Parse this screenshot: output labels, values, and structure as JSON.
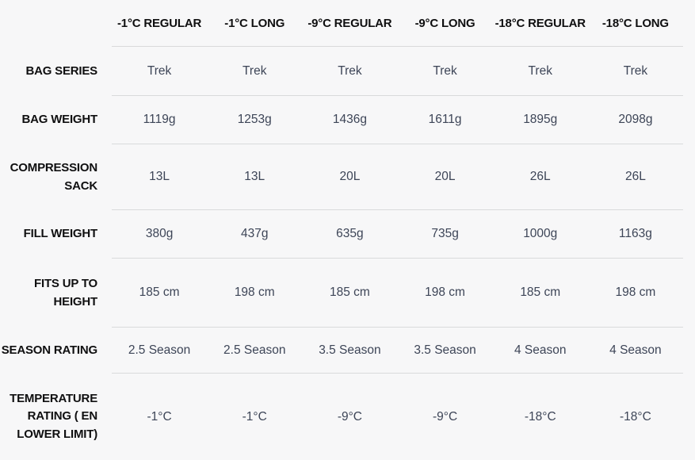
{
  "colors": {
    "background": "#f7f7f8",
    "label_text": "#0f0f10",
    "value_text": "#3d4557",
    "divider": "#d9dadb"
  },
  "table": {
    "columns": [
      "-1°C REGULAR",
      "-1°C LONG",
      "-9°C REGULAR",
      "-9°C LONG",
      "-18°C REGULAR",
      "-18°C LONG"
    ],
    "rows": [
      {
        "label": "BAG SERIES",
        "values": [
          "Trek",
          "Trek",
          "Trek",
          "Trek",
          "Trek",
          "Trek"
        ]
      },
      {
        "label": "BAG WEIGHT",
        "values": [
          "1119g",
          "1253g",
          "1436g",
          "1611g",
          "1895g",
          "2098g"
        ]
      },
      {
        "label": "COMPRESSION\nSACK",
        "values": [
          "13L",
          "13L",
          "20L",
          "20L",
          "26L",
          "26L"
        ]
      },
      {
        "label": "FILL WEIGHT",
        "values": [
          "380g",
          "437g",
          "635g",
          "735g",
          "1000g",
          "1163g"
        ]
      },
      {
        "label": "FITS UP TO\nHEIGHT",
        "values": [
          "185 cm",
          "198 cm",
          "185 cm",
          "198 cm",
          "185 cm",
          "198 cm"
        ]
      },
      {
        "label": "SEASON RATING",
        "values": [
          "2.5 Season",
          "2.5 Season",
          "3.5 Season",
          "3.5 Season",
          "4 Season",
          "4 Season"
        ]
      },
      {
        "label": "TEMPERATURE\nRATING ( EN\nLOWER LIMIT)",
        "values": [
          "-1°C",
          "-1°C",
          "-9°C",
          "-9°C",
          "-18°C",
          "-18°C"
        ]
      }
    ]
  }
}
